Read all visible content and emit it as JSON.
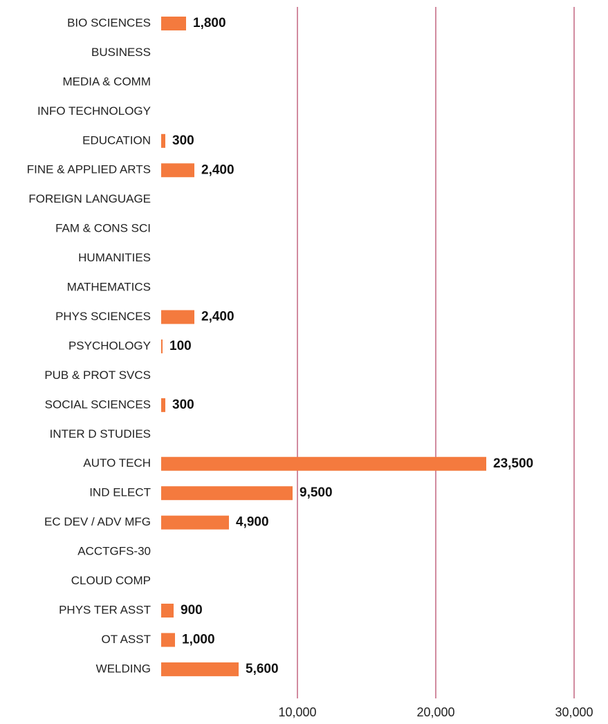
{
  "chart_data": {
    "type": "hbar",
    "categories": [
      "BIO SCIENCES",
      "BUSINESS",
      "MEDIA & COMM",
      "INFO TECHNOLOGY",
      "EDUCATION",
      "FINE & APPLIED ARTS",
      "FOREIGN LANGUAGE",
      "FAM & CONS SCI",
      "HUMANITIES",
      "MATHEMATICS",
      "PHYS SCIENCES",
      "PSYCHOLOGY",
      "PUB & PROT SVCS",
      "SOCIAL SCIENCES",
      "INTER D STUDIES",
      "AUTO TECH",
      "IND ELECT",
      "EC DEV / ADV MFG",
      "ACCTGFS-30",
      "CLOUD COMP",
      "PHYS TER ASST",
      "OT ASST",
      "WELDING"
    ],
    "values": [
      1800,
      null,
      null,
      null,
      300,
      2400,
      null,
      null,
      null,
      null,
      2400,
      100,
      null,
      300,
      null,
      23500,
      9500,
      4900,
      null,
      null,
      900,
      1000,
      5600
    ],
    "value_labels": [
      "1,800",
      null,
      null,
      null,
      "300",
      "2,400",
      null,
      null,
      null,
      null,
      "2,400",
      "100",
      null,
      "300",
      null,
      "23,500",
      "9,500",
      "4,900",
      null,
      null,
      "900",
      "1,000",
      "5,600"
    ],
    "color": "#f47a3e",
    "grid_color": "#a3173f",
    "xlim": [
      0,
      30000
    ],
    "xticks": [
      {
        "value": 10000,
        "label": "10,000"
      },
      {
        "value": 20000,
        "label": "20,000"
      },
      {
        "value": 30000,
        "label": "30,000"
      }
    ],
    "grid": true
  }
}
